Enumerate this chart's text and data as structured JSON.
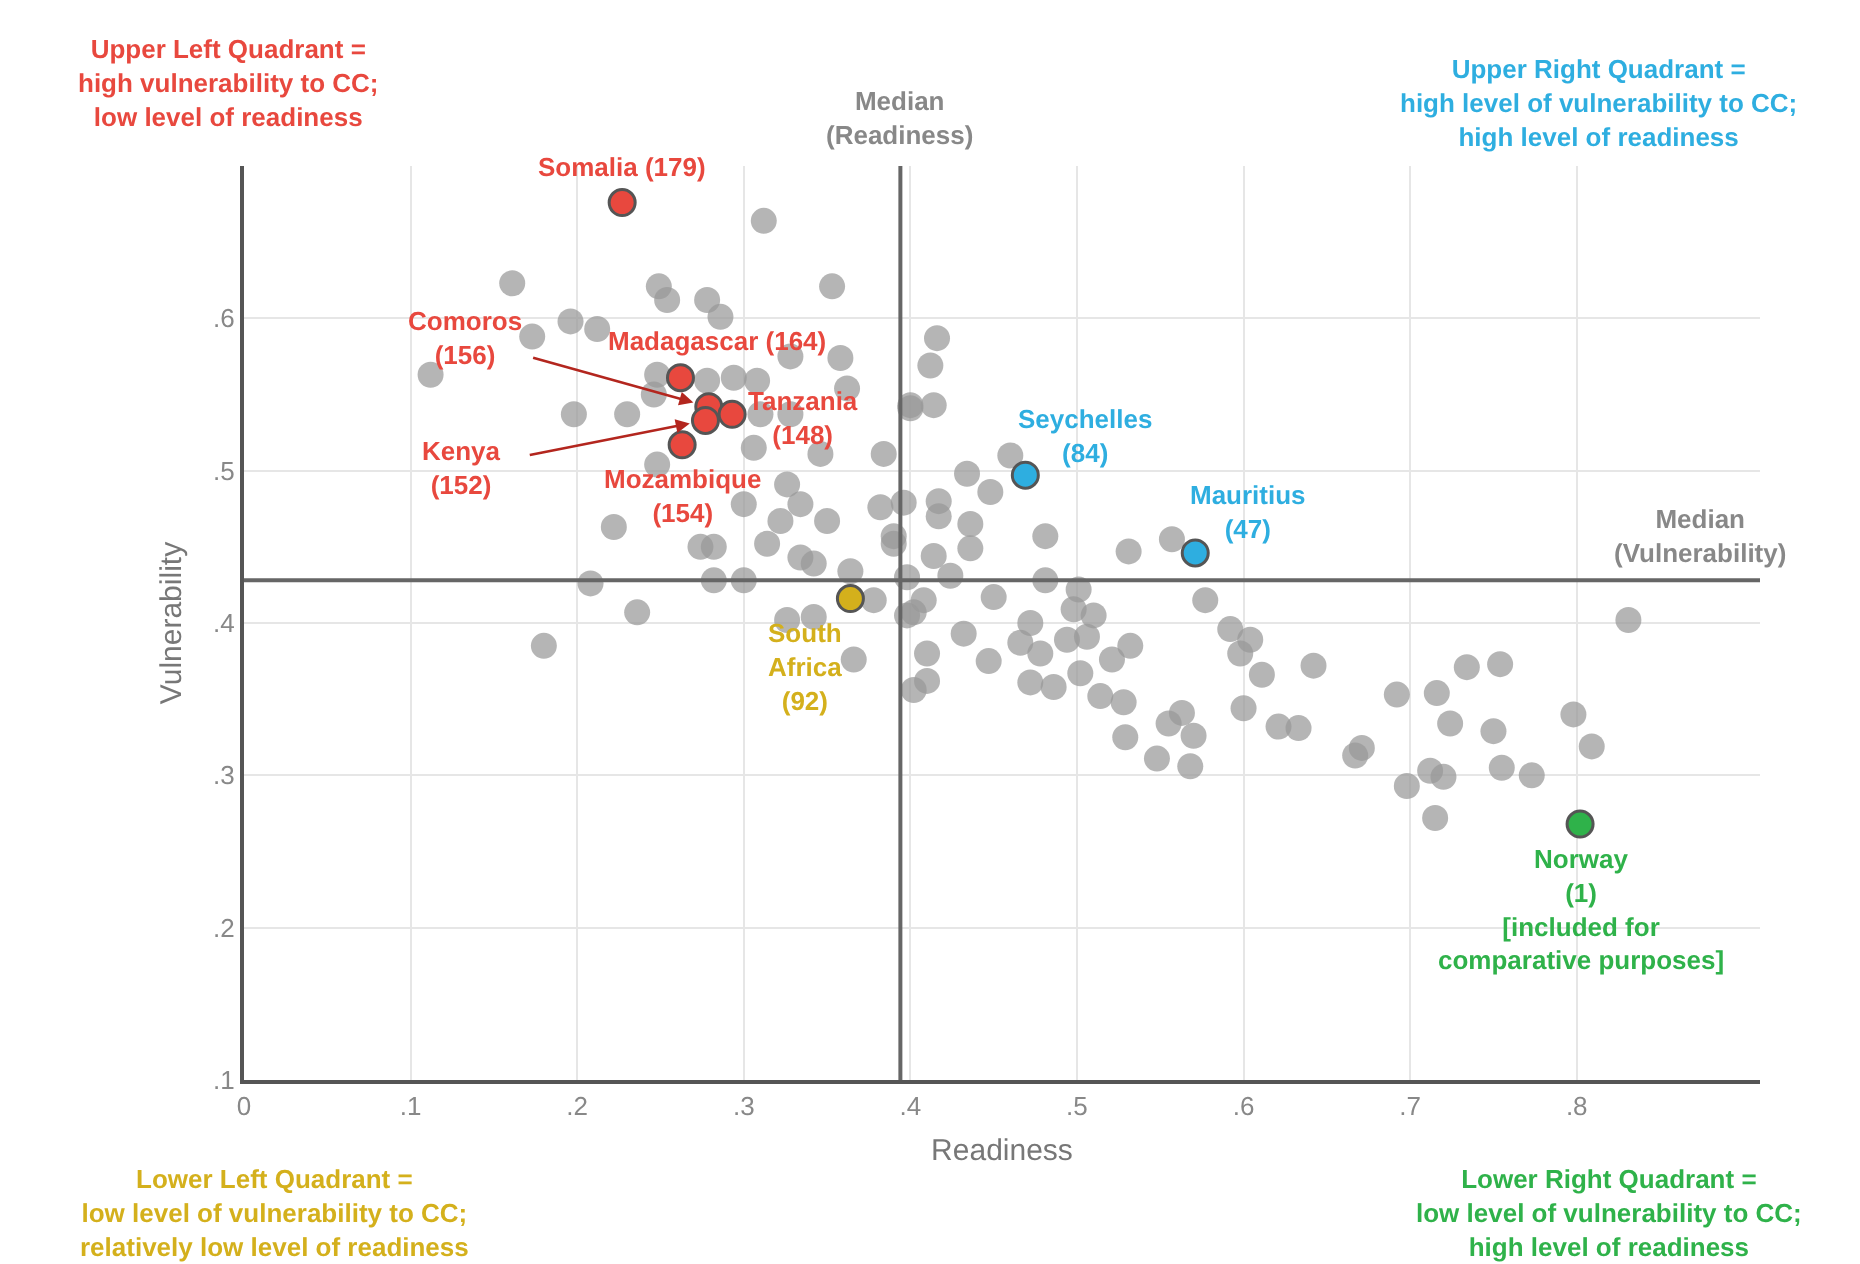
{
  "chart_data": {
    "type": "scatter",
    "xlabel": "Readiness",
    "ylabel": "Vulnerability",
    "xlim": [
      0,
      0.91
    ],
    "xticks": [
      0,
      {
        "value": 0.1,
        "label": ".1"
      },
      {
        "value": 0.2,
        "label": ".2"
      },
      {
        "value": 0.3,
        "label": ".3"
      },
      {
        "value": 0.4,
        "label": ".4"
      },
      {
        "value": 0.5,
        "label": ".5"
      },
      {
        "value": 0.6,
        "label": ".6"
      },
      {
        "value": 0.7,
        "label": ".7"
      },
      {
        "value": 0.8,
        "label": ".8"
      }
    ],
    "ylim": [
      0.1,
      0.7
    ],
    "yticks": [
      {
        "value": 0.1,
        "label": ".1"
      },
      {
        "value": 0.2,
        "label": ".2"
      },
      {
        "value": 0.3,
        "label": ".3"
      },
      {
        "value": 0.4,
        "label": ".4"
      },
      {
        "value": 0.5,
        "label": ".5"
      },
      {
        "value": 0.6,
        "label": ".6"
      }
    ],
    "grid": true,
    "marker": "circle",
    "series": [
      {
        "color": "#999999",
        "x": [
          0.312,
          0.161,
          0.249,
          0.254,
          0.278,
          0.286,
          0.353,
          0.196,
          0.212,
          0.173,
          0.112,
          0.328,
          0.358,
          0.248,
          0.278,
          0.294,
          0.308,
          0.198,
          0.23,
          0.246,
          0.31,
          0.328,
          0.362,
          0.4,
          0.306,
          0.346,
          0.384,
          0.248,
          0.326,
          0.222,
          0.3,
          0.322,
          0.334,
          0.35,
          0.382,
          0.314,
          0.334,
          0.39,
          0.274,
          0.282,
          0.342,
          0.364,
          0.208,
          0.282,
          0.3,
          0.398,
          0.236,
          0.18,
          0.326,
          0.342,
          0.378,
          0.366,
          0.402,
          0.416,
          0.412,
          0.4,
          0.414,
          0.46,
          0.434,
          0.448,
          0.396,
          0.417,
          0.417,
          0.436,
          0.39,
          0.481,
          0.436,
          0.414,
          0.531,
          0.557,
          0.424,
          0.481,
          0.501,
          0.577,
          0.831,
          0.45,
          0.408,
          0.398,
          0.472,
          0.51,
          0.498,
          0.432,
          0.466,
          0.478,
          0.494,
          0.506,
          0.532,
          0.41,
          0.592,
          0.604,
          0.521,
          0.598,
          0.447,
          0.642,
          0.611,
          0.472,
          0.486,
          0.502,
          0.514,
          0.528,
          0.41,
          0.692,
          0.716,
          0.734,
          0.754,
          0.563,
          0.6,
          0.555,
          0.57,
          0.529,
          0.621,
          0.633,
          0.724,
          0.75,
          0.798,
          0.809,
          0.671,
          0.548,
          0.568,
          0.667,
          0.698,
          0.712,
          0.72,
          0.715,
          0.755,
          0.773,
          0.402
        ],
        "values": [
          0.664,
          0.623,
          0.621,
          0.612,
          0.612,
          0.601,
          0.621,
          0.598,
          0.593,
          0.588,
          0.563,
          0.575,
          0.574,
          0.563,
          0.559,
          0.561,
          0.559,
          0.537,
          0.537,
          0.55,
          0.537,
          0.537,
          0.554,
          0.541,
          0.515,
          0.511,
          0.511,
          0.504,
          0.491,
          0.463,
          0.478,
          0.467,
          0.478,
          0.467,
          0.476,
          0.452,
          0.443,
          0.452,
          0.45,
          0.45,
          0.439,
          0.434,
          0.426,
          0.428,
          0.428,
          0.43,
          0.407,
          0.385,
          0.402,
          0.404,
          0.415,
          0.376,
          0.407,
          0.587,
          0.569,
          0.543,
          0.543,
          0.51,
          0.498,
          0.486,
          0.479,
          0.48,
          0.47,
          0.465,
          0.457,
          0.457,
          0.449,
          0.444,
          0.447,
          0.455,
          0.431,
          0.428,
          0.422,
          0.415,
          0.402,
          0.417,
          0.415,
          0.405,
          0.4,
          0.405,
          0.409,
          0.393,
          0.387,
          0.38,
          0.389,
          0.391,
          0.385,
          0.38,
          0.396,
          0.389,
          0.376,
          0.38,
          0.375,
          0.372,
          0.366,
          0.361,
          0.358,
          0.367,
          0.352,
          0.348,
          0.362,
          0.353,
          0.354,
          0.371,
          0.373,
          0.341,
          0.344,
          0.334,
          0.326,
          0.325,
          0.332,
          0.331,
          0.334,
          0.329,
          0.34,
          0.319,
          0.318,
          0.311,
          0.306,
          0.313,
          0.293,
          0.303,
          0.299,
          0.272,
          0.305,
          0.3,
          0.356
        ]
      },
      {
        "name": "Somalia (179)",
        "color": "#e8483e",
        "x": [
          0.227
        ],
        "values": [
          0.676
        ]
      },
      {
        "name": "Madagascar (164)",
        "color": "#e8483e",
        "x": [
          0.262
        ],
        "values": [
          0.561
        ]
      },
      {
        "name": "Comoros\n(156)",
        "color": "#e8483e",
        "x": [
          0.279
        ],
        "values": [
          0.542
        ]
      },
      {
        "name": "Tanzania\n(148)",
        "color": "#e8483e",
        "x": [
          0.293
        ],
        "values": [
          0.537
        ]
      },
      {
        "name": "Kenya\n(152)",
        "color": "#e8483e",
        "x": [
          0.277
        ],
        "values": [
          0.533
        ]
      },
      {
        "name": "Mozambique\n(154)",
        "color": "#e8483e",
        "x": [
          0.263
        ],
        "values": [
          0.517
        ]
      },
      {
        "name": "South\nAfrica\n(92)",
        "color": "#d4b01c",
        "x": [
          0.364
        ],
        "values": [
          0.416
        ]
      },
      {
        "name": "Seychelles\n(84)",
        "color": "#2eaee0",
        "x": [
          0.469
        ],
        "values": [
          0.497
        ]
      },
      {
        "name": "Mauritius\n(47)",
        "color": "#2eaee0",
        "x": [
          0.571
        ],
        "values": [
          0.446
        ]
      },
      {
        "name": "Norway\n(1)\n[included for\ncomparative purposes]",
        "color": "#2fb24a",
        "x": [
          0.802
        ],
        "values": [
          0.268
        ]
      }
    ],
    "ref_lines": [
      {
        "axis": "x",
        "value": 0.394,
        "label": "Median\n(Readiness)",
        "color": "#666666"
      },
      {
        "axis": "y",
        "value": 0.428,
        "label": "Median\n(Vulnerability)",
        "color": "#666666"
      }
    ],
    "annotations": [
      "Upper Left Quadrant =\nhigh vulnerability to CC;\nlow level of readiness",
      "Upper Right Quadrant =\nhigh level of vulnerability to CC;\nhigh level of readiness",
      "Lower Left Quadrant =\nlow level of vulnerability to CC;\nrelatively low level of readiness",
      "Lower Right Quadrant =\nlow level of vulnerability to CC;\nhigh level of readiness"
    ]
  }
}
